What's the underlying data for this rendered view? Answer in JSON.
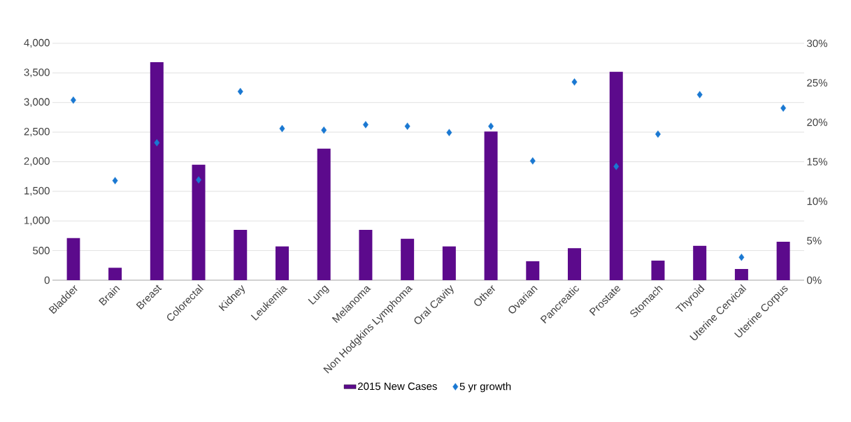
{
  "chart_data": {
    "type": "bar",
    "categories": [
      "Bladder",
      "Brain",
      "Breast",
      "Colorectal",
      "Kidney",
      "Leukemia",
      "Lung",
      "Melanoma",
      "Non Hodgkins Lymphoma",
      "Oral Cavity",
      "Other",
      "Ovarian",
      "Pancreatic",
      "Prostate",
      "Stomach",
      "Thyroid",
      "Uterine Cervical",
      "Uterine Corpus"
    ],
    "series": [
      {
        "name": "2015 New Cases",
        "color": "#5c0a8c",
        "values": [
          710,
          210,
          3680,
          1950,
          850,
          570,
          2220,
          850,
          700,
          570,
          2510,
          320,
          540,
          3520,
          330,
          580,
          190,
          650
        ]
      },
      {
        "name": "5 yr growth",
        "type": "scatter",
        "axis": "y2",
        "color": "#1a78d2",
        "values": [
          22.8,
          12.6,
          17.4,
          12.7,
          23.9,
          19.2,
          19.0,
          19.7,
          19.5,
          18.7,
          19.5,
          15.1,
          25.1,
          14.4,
          18.5,
          23.5,
          2.9,
          21.8
        ]
      }
    ],
    "ylim": [
      0,
      4000
    ],
    "yticks": [
      {
        "value": 0,
        "label": "0"
      },
      {
        "value": 500,
        "label": "500"
      },
      {
        "value": 1000,
        "label": "1,000"
      },
      {
        "value": 1500,
        "label": "1,500"
      },
      {
        "value": 2000,
        "label": "2,000"
      },
      {
        "value": 2500,
        "label": "2,500"
      },
      {
        "value": 3000,
        "label": "3,000"
      },
      {
        "value": 3500,
        "label": "3,500"
      },
      {
        "value": 4000,
        "label": "4,000"
      }
    ],
    "y2lim": [
      0,
      30
    ],
    "y2ticks": [
      {
        "value": 0,
        "label": "0%"
      },
      {
        "value": 5,
        "label": "5%"
      },
      {
        "value": 10,
        "label": "10%"
      },
      {
        "value": 15,
        "label": "15%"
      },
      {
        "value": 20,
        "label": "20%"
      },
      {
        "value": 25,
        "label": "25%"
      },
      {
        "value": 30,
        "label": "30%"
      }
    ],
    "grid": "y",
    "legend": "bottom",
    "marker": "diamond"
  }
}
